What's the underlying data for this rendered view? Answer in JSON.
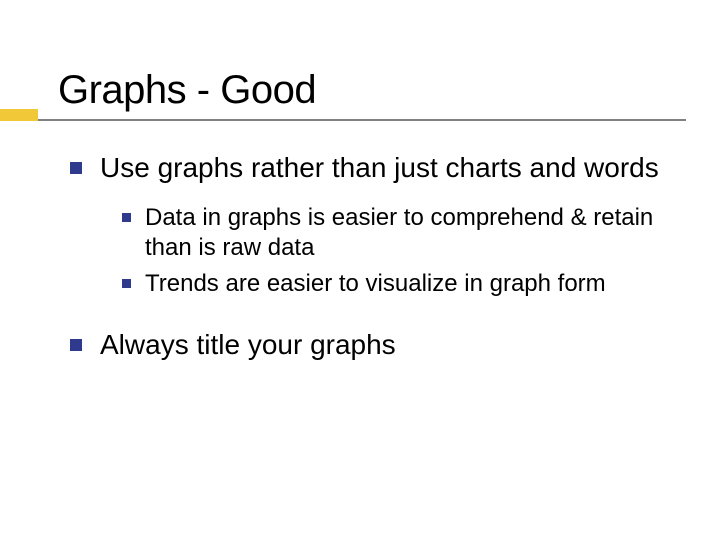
{
  "slide": {
    "title": "Graphs - Good",
    "accent_color": "#f0c838",
    "underline_color": "#808080",
    "bullet_color": "#2f3a8f",
    "text_color": "#000000",
    "background_color": "#ffffff",
    "title_fontsize": 40,
    "level1_fontsize": 28,
    "level2_fontsize": 24,
    "items": [
      {
        "text": "Use graphs rather than just charts and words",
        "subitems": [
          {
            "text": "Data in graphs is easier to comprehend & retain than is raw data"
          },
          {
            "text": "Trends are easier to visualize in graph form"
          }
        ]
      },
      {
        "text": "Always title your graphs",
        "subitems": []
      }
    ]
  }
}
